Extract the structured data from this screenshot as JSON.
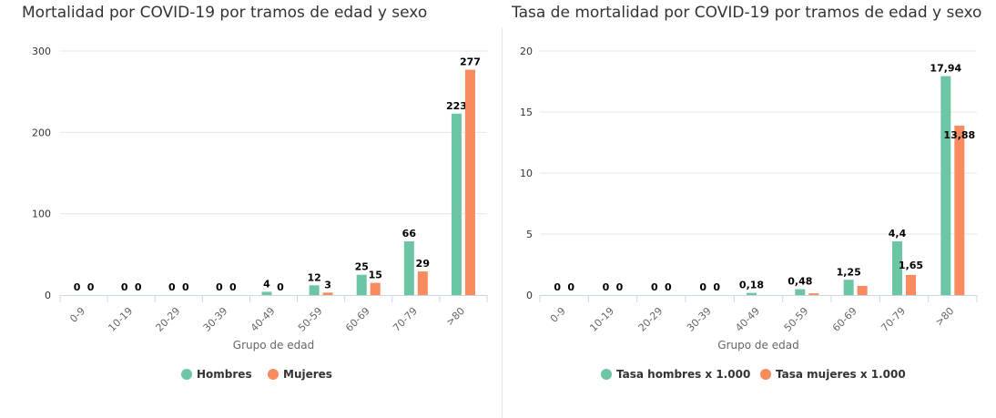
{
  "colors": {
    "series_a": "#6cc5a3",
    "series_b": "#f98b5e",
    "grid": "#e6e6e6",
    "axis": "#ccd6eb"
  },
  "chart_data": [
    {
      "type": "bar",
      "title": "Mortalidad por COVID-19 por tramos de edad y sexo",
      "xlabel": "Grupo de edad",
      "ylabel": "",
      "ylim": [
        0,
        300
      ],
      "yticks": [
        "0",
        "100",
        "200",
        "300"
      ],
      "ytick_values": [
        0,
        100,
        200,
        300
      ],
      "categories": [
        "0-9",
        "10-19",
        "20-29",
        "30-39",
        "40-49",
        "50-59",
        "60-69",
        "70-79",
        ">80"
      ],
      "grid": true,
      "legend_position": "bottom",
      "series": [
        {
          "name": "Hombres",
          "values": [
            0,
            0,
            0,
            0,
            4,
            12,
            25,
            66,
            223
          ],
          "labels": [
            "0",
            "0",
            "0",
            "0",
            "4",
            "12",
            "25",
            "66",
            "223"
          ]
        },
        {
          "name": "Mujeres",
          "values": [
            0,
            0,
            0,
            0,
            0,
            3,
            15,
            29,
            277
          ],
          "labels": [
            "0",
            "0",
            "0",
            "0",
            "0",
            "3",
            "15",
            "29",
            "277"
          ]
        }
      ]
    },
    {
      "type": "bar",
      "title": "Tasa de mortalidad por COVID-19 por tramos de edad y sexo",
      "xlabel": "Grupo de edad",
      "ylabel": "",
      "ylim": [
        0,
        20
      ],
      "yticks": [
        "0",
        "5",
        "10",
        "15",
        "20"
      ],
      "ytick_values": [
        0,
        5,
        10,
        15,
        20
      ],
      "categories": [
        "0-9",
        "10-19",
        "20-29",
        "30-39",
        "40-49",
        "50-59",
        "60-69",
        "70-79",
        ">80"
      ],
      "grid": true,
      "legend_position": "bottom",
      "series": [
        {
          "name": "Tasa hombres x 1.000",
          "values": [
            0,
            0,
            0,
            0,
            0.18,
            0.48,
            1.25,
            4.4,
            17.94
          ],
          "labels": [
            "0",
            "0",
            "0",
            "0",
            "0,18",
            "0,48",
            "1,25",
            "4,4",
            "17,94"
          ]
        },
        {
          "name": "Tasa mujeres x 1.000",
          "values": [
            0,
            0,
            0,
            0,
            0,
            0.14,
            0.75,
            1.65,
            13.88
          ],
          "labels": [
            "0",
            "0",
            "0",
            "0",
            "",
            "",
            "",
            "1,65",
            "13,88"
          ]
        }
      ]
    }
  ]
}
